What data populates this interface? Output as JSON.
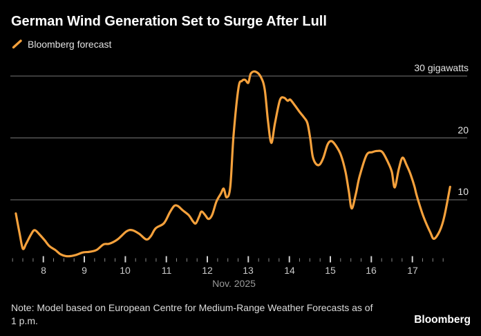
{
  "header": {
    "title": "German Wind Generation Set to Surge After Lull",
    "legend": {
      "label": "Bloomberg forecast",
      "marker": "slash-icon",
      "color": "#F5A13C"
    }
  },
  "footer": {
    "note_lines": [
      "Note: Model based on European Centre for Medium-Range Weather Forecasts as of",
      "1 p.m."
    ],
    "brand": "Bloomberg"
  },
  "chart_data": {
    "type": "line",
    "title": "German Wind Generation Set to Surge After Lull",
    "subtitle": "",
    "legend_position": "top-left",
    "background": "#000000",
    "grid": true,
    "colors": {
      "line": "#F5A13C",
      "gridline": "#787878",
      "major_tick": "#d2d2d2",
      "minor_tick": "#8a8a8a"
    },
    "x": {
      "label": "Nov. 2025",
      "tick_labels": [
        "8",
        "9",
        "10",
        "11",
        "12",
        "13",
        "14",
        "15",
        "16",
        "17"
      ],
      "tick_days": [
        8,
        9,
        10,
        11,
        12,
        13,
        14,
        15,
        16,
        17
      ],
      "minor_tick_interval_days": 0.25,
      "range_days": [
        7.25,
        17.97
      ]
    },
    "y": {
      "unit": "gigawatts",
      "gridline_values": [
        10,
        20,
        30
      ],
      "gridline_labels": [
        "10",
        "20",
        "30 gigawatts"
      ],
      "range": [
        0,
        32
      ]
    },
    "series": [
      {
        "name": "Bloomberg forecast",
        "color": "#F5A13C",
        "points_day_gw": [
          [
            7.33,
            7.8
          ],
          [
            7.42,
            4.6
          ],
          [
            7.5,
            2.1
          ],
          [
            7.58,
            2.9
          ],
          [
            7.7,
            4.4
          ],
          [
            7.79,
            5.1
          ],
          [
            7.92,
            4.3
          ],
          [
            8.04,
            3.4
          ],
          [
            8.15,
            2.5
          ],
          [
            8.29,
            1.9
          ],
          [
            8.42,
            1.2
          ],
          [
            8.55,
            0.9
          ],
          [
            8.67,
            0.9
          ],
          [
            8.8,
            1.1
          ],
          [
            8.97,
            1.5
          ],
          [
            9.13,
            1.6
          ],
          [
            9.3,
            1.9
          ],
          [
            9.47,
            2.8
          ],
          [
            9.61,
            2.9
          ],
          [
            9.81,
            3.6
          ],
          [
            10.03,
            4.9
          ],
          [
            10.17,
            5.1
          ],
          [
            10.34,
            4.5
          ],
          [
            10.51,
            3.6
          ],
          [
            10.62,
            4.1
          ],
          [
            10.74,
            5.4
          ],
          [
            10.94,
            6.2
          ],
          [
            11.08,
            7.9
          ],
          [
            11.19,
            9.0
          ],
          [
            11.28,
            9.0
          ],
          [
            11.4,
            8.3
          ],
          [
            11.55,
            7.5
          ],
          [
            11.65,
            6.5
          ],
          [
            11.72,
            6.2
          ],
          [
            11.8,
            7.3
          ],
          [
            11.86,
            8.1
          ],
          [
            11.95,
            7.5
          ],
          [
            12.03,
            6.9
          ],
          [
            12.12,
            7.6
          ],
          [
            12.22,
            9.7
          ],
          [
            12.33,
            11.0
          ],
          [
            12.4,
            11.8
          ],
          [
            12.47,
            10.4
          ],
          [
            12.56,
            12.1
          ],
          [
            12.64,
            20.5
          ],
          [
            12.76,
            28.1
          ],
          [
            12.84,
            29.2
          ],
          [
            12.92,
            29.4
          ],
          [
            13.0,
            28.9
          ],
          [
            13.06,
            30.4
          ],
          [
            13.18,
            30.7
          ],
          [
            13.31,
            29.8
          ],
          [
            13.4,
            27.8
          ],
          [
            13.48,
            22.7
          ],
          [
            13.56,
            19.2
          ],
          [
            13.65,
            22.4
          ],
          [
            13.77,
            26.1
          ],
          [
            13.87,
            26.5
          ],
          [
            13.96,
            26.0
          ],
          [
            14.02,
            26.2
          ],
          [
            14.13,
            25.3
          ],
          [
            14.25,
            24.2
          ],
          [
            14.36,
            23.3
          ],
          [
            14.44,
            22.4
          ],
          [
            14.51,
            19.9
          ],
          [
            14.57,
            17.0
          ],
          [
            14.65,
            15.8
          ],
          [
            14.74,
            15.7
          ],
          [
            14.83,
            16.8
          ],
          [
            14.93,
            18.9
          ],
          [
            15.02,
            19.5
          ],
          [
            15.13,
            18.8
          ],
          [
            15.26,
            17.2
          ],
          [
            15.37,
            14.5
          ],
          [
            15.45,
            11.4
          ],
          [
            15.52,
            8.6
          ],
          [
            15.62,
            10.9
          ],
          [
            15.71,
            13.7
          ],
          [
            15.88,
            17.2
          ],
          [
            16.02,
            17.7
          ],
          [
            16.15,
            17.9
          ],
          [
            16.27,
            17.7
          ],
          [
            16.41,
            16.0
          ],
          [
            16.5,
            14.5
          ],
          [
            16.57,
            12.0
          ],
          [
            16.67,
            15.0
          ],
          [
            16.76,
            16.8
          ],
          [
            16.86,
            15.6
          ],
          [
            16.94,
            14.4
          ],
          [
            17.05,
            12.2
          ],
          [
            17.11,
            10.6
          ],
          [
            17.27,
            7.3
          ],
          [
            17.44,
            4.7
          ],
          [
            17.53,
            3.7
          ],
          [
            17.67,
            5.0
          ],
          [
            17.78,
            7.3
          ],
          [
            17.92,
            12.1
          ]
        ]
      }
    ]
  }
}
